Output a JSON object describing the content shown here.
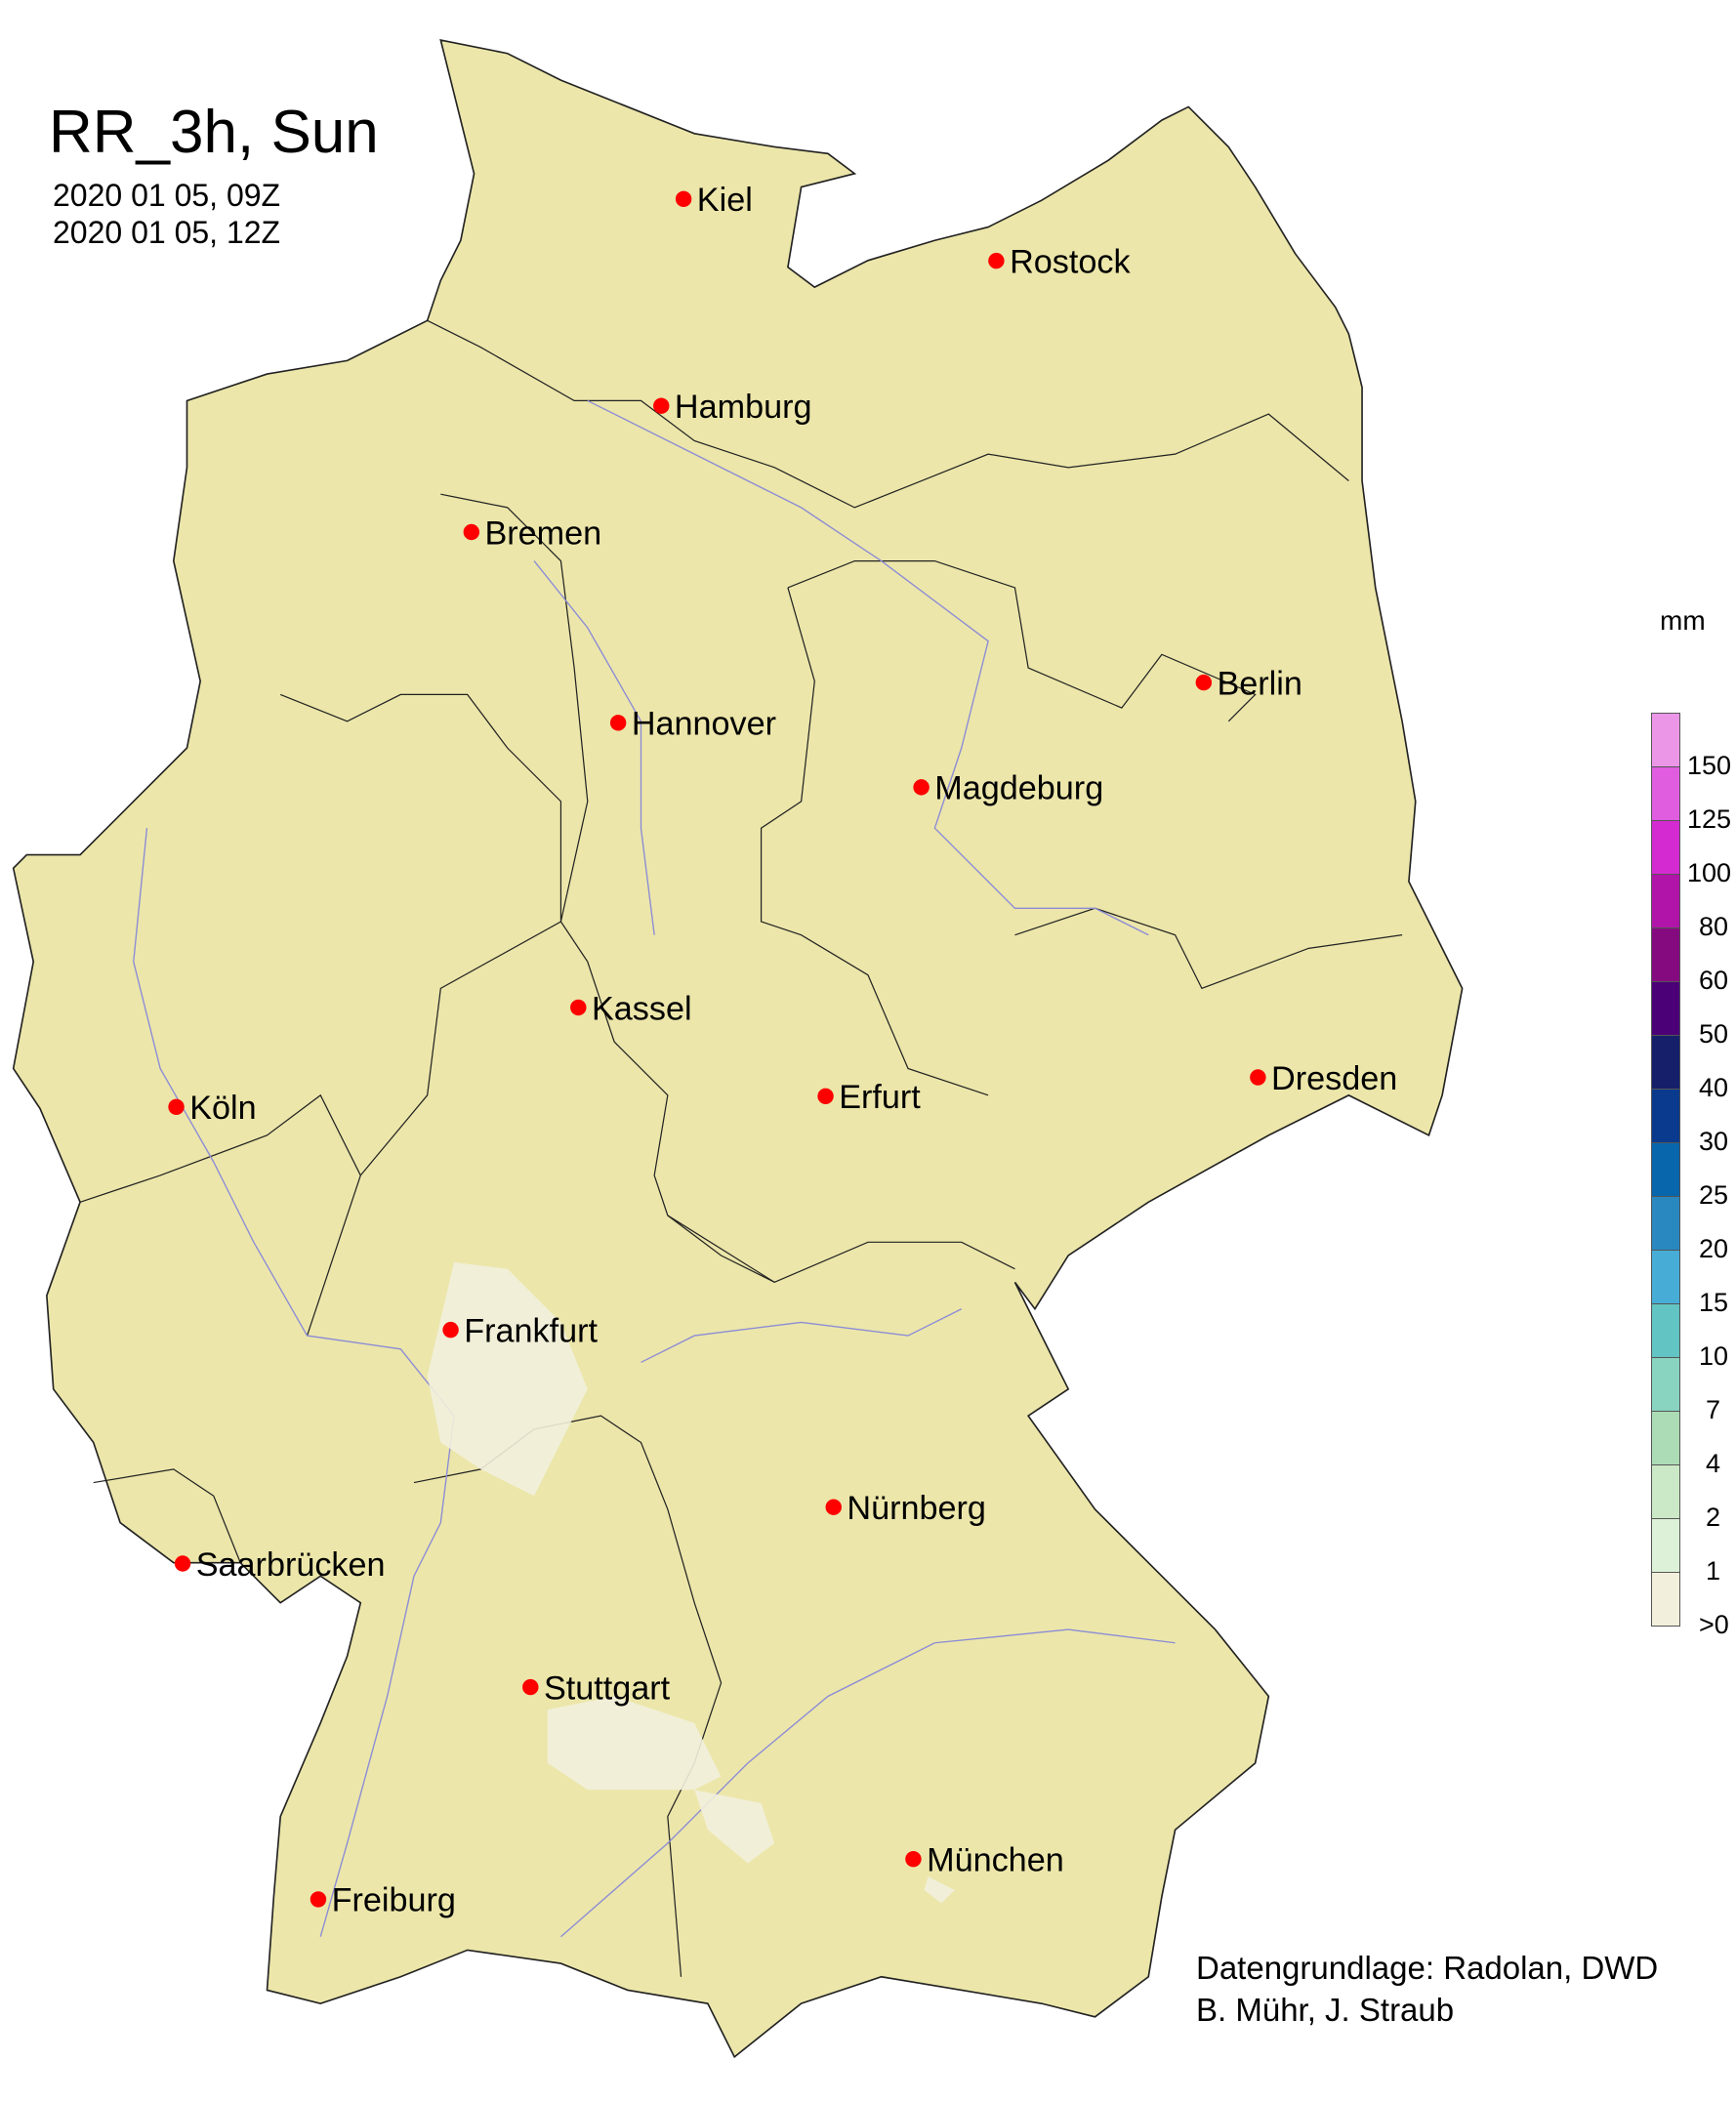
{
  "title": "RR_3h, Sun",
  "period_start": "2020 01 05, 09Z",
  "period_end": "2020 01 05, 12Z",
  "credits": [
    "Datengrundlage: Radolan, DWD",
    "B. Mühr, J. Straub"
  ],
  "colors": {
    "land": "#ece6aa",
    "border": "#000000",
    "river": "#8c8cd6",
    "city_dot": "#ff0000"
  },
  "cities": [
    {
      "name": "Kiel",
      "lon": 10.14,
      "lat": 54.32
    },
    {
      "name": "Rostock",
      "lon": 12.1,
      "lat": 54.09
    },
    {
      "name": "Hamburg",
      "lon": 10.0,
      "lat": 53.55
    },
    {
      "name": "Bremen",
      "lon": 8.81,
      "lat": 53.08
    },
    {
      "name": "Berlin",
      "lon": 13.4,
      "lat": 52.52
    },
    {
      "name": "Hannover",
      "lon": 9.73,
      "lat": 52.37
    },
    {
      "name": "Magdeburg",
      "lon": 11.63,
      "lat": 52.13
    },
    {
      "name": "Kassel",
      "lon": 9.48,
      "lat": 51.31
    },
    {
      "name": "Köln",
      "lon": 6.96,
      "lat": 50.94
    },
    {
      "name": "Erfurt",
      "lon": 11.03,
      "lat": 50.98
    },
    {
      "name": "Dresden",
      "lon": 13.74,
      "lat": 51.05
    },
    {
      "name": "Frankfurt",
      "lon": 8.68,
      "lat": 50.11
    },
    {
      "name": "Nürnberg",
      "lon": 11.08,
      "lat": 49.45
    },
    {
      "name": "Saarbrücken",
      "lon": 7.0,
      "lat": 49.24
    },
    {
      "name": "Stuttgart",
      "lon": 9.18,
      "lat": 48.78
    },
    {
      "name": "München",
      "lon": 11.58,
      "lat": 48.14
    },
    {
      "name": "Freiburg",
      "lon": 7.85,
      "lat": 47.99
    }
  ],
  "legend": {
    "unit": "mm",
    "labels": [
      ">0",
      "1",
      "2",
      "4",
      "7",
      "10",
      "15",
      "20",
      "25",
      "30",
      "40",
      "50",
      "60",
      "80",
      "100",
      "125",
      "150"
    ],
    "colors": [
      "#f2f0dc",
      "#ddf1d8",
      "#cbe9c6",
      "#abdcb5",
      "#89d4c0",
      "#62c5c3",
      "#48add6",
      "#2a88c0",
      "#0866ad",
      "#0a3a8d",
      "#16206a",
      "#4b0078",
      "#850a80",
      "#b014a8",
      "#d42ad2",
      "#e05de0",
      "#ec96e8"
    ]
  }
}
